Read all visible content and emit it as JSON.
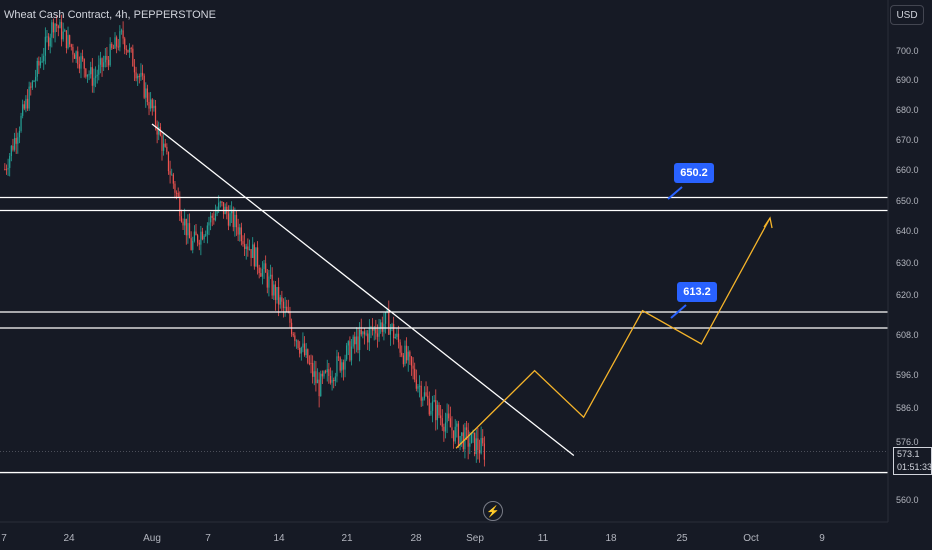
{
  "header": {
    "symbol_title": "Wheat Cash Contract, 4h, PEPPERSTONE",
    "currency_button": "USD"
  },
  "price_tag": {
    "last_price": "573.1",
    "countdown": "01:51:33"
  },
  "callouts": [
    {
      "label": "650.2"
    },
    {
      "label": "613.2"
    }
  ],
  "colors": {
    "background": "#161a25",
    "bull": "#26a69a",
    "bear": "#ef5350",
    "projection": "#f5b42a",
    "callout": "#2962ff",
    "lines": "#ffffff",
    "axis_text": "#b2b5be"
  },
  "chart_data": {
    "type": "candlestick",
    "symbol": "Wheat Cash Contract",
    "timeframe": "4h",
    "broker": "PEPPERSTONE",
    "currency": "USD",
    "y_axis": {
      "range": [
        552,
        718
      ],
      "ticks": [
        "700.0",
        "690.0",
        "680.0",
        "670.0",
        "660.0",
        "650.0",
        "640.0",
        "630.0",
        "620.0",
        "608.0",
        "596.0",
        "586.0",
        "576.0",
        "560.0"
      ]
    },
    "x_axis": {
      "ticks": [
        "7",
        "24",
        "Aug",
        "7",
        "14",
        "21",
        "28",
        "Sep",
        "11",
        "18",
        "25",
        "Oct",
        "9"
      ]
    },
    "last_price": 573.1,
    "horizontal_levels": [
      650.8,
      646.5,
      614.6,
      609.8,
      567.3
    ],
    "trendline": {
      "from": {
        "date": "Aug 1",
        "price": 675
      },
      "to": {
        "date": "Sep 13",
        "price": 572
      }
    },
    "resistance_labels": [
      650.2,
      613.2
    ],
    "projection_path": [
      {
        "date": "Sep 1",
        "price": 574
      },
      {
        "date": "Sep 9",
        "price": 597
      },
      {
        "date": "Sep 14",
        "price": 583
      },
      {
        "date": "Sep 20",
        "price": 615
      },
      {
        "date": "Sep 26",
        "price": 605
      },
      {
        "date": "Oct 3",
        "price": 644
      }
    ],
    "price_path": [
      {
        "date": "Jul 17",
        "price": 660
      },
      {
        "date": "Jul 22",
        "price": 710
      },
      {
        "date": "Jul 26",
        "price": 690
      },
      {
        "date": "Jul 29",
        "price": 705
      },
      {
        "date": "Aug 1",
        "price": 680
      },
      {
        "date": "Aug 5",
        "price": 635
      },
      {
        "date": "Aug 8",
        "price": 648
      },
      {
        "date": "Aug 10",
        "price": 640
      },
      {
        "date": "Aug 15",
        "price": 612
      },
      {
        "date": "Aug 18",
        "price": 592
      },
      {
        "date": "Aug 22",
        "price": 606
      },
      {
        "date": "Aug 25",
        "price": 612
      },
      {
        "date": "Aug 29",
        "price": 588
      },
      {
        "date": "Sep 1",
        "price": 578
      },
      {
        "date": "Sep 3",
        "price": 575
      },
      {
        "date": "Sep 4",
        "price": 573.1
      }
    ]
  }
}
